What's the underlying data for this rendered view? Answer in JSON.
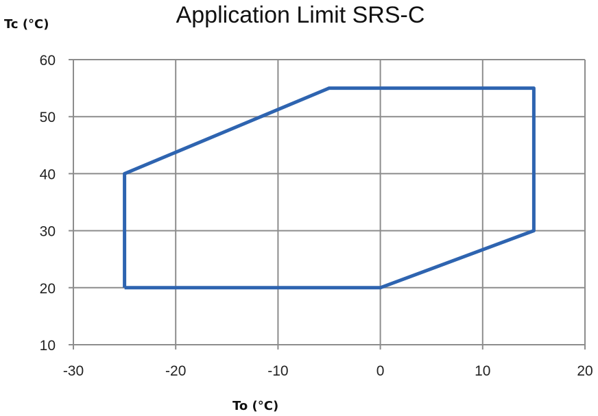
{
  "chart_data": {
    "type": "line",
    "title": "Application Limit SRS-C",
    "xlabel": "To (°C)",
    "ylabel": "Tc (°C)",
    "xlim": [
      -30,
      20
    ],
    "ylim": [
      10,
      60
    ],
    "xticks": [
      -30,
      -20,
      -10,
      0,
      10,
      20
    ],
    "yticks": [
      10,
      20,
      30,
      40,
      50,
      60
    ],
    "grid": true,
    "series": [
      {
        "x": [
          -25,
          -25,
          -5,
          15,
          15,
          0,
          -25
        ],
        "y": [
          20,
          40,
          55,
          55,
          30,
          20,
          20
        ],
        "color": "#2e64b0"
      }
    ],
    "grid_color": "#8c8c8c"
  }
}
